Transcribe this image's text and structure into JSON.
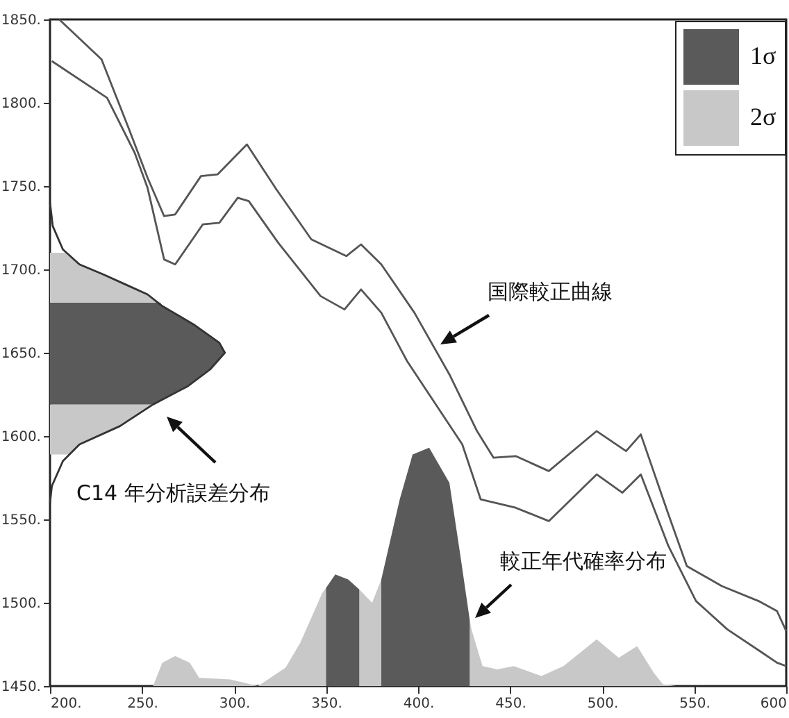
{
  "chart_data": {
    "type": "line",
    "xlim": [
      200,
      600
    ],
    "ylim": [
      1450,
      1850
    ],
    "xticks": [
      {
        "value": 200,
        "label": "200."
      },
      {
        "value": 250,
        "label": "250."
      },
      {
        "value": 300,
        "label": "300."
      },
      {
        "value": 350,
        "label": "350."
      },
      {
        "value": 400,
        "label": "400."
      },
      {
        "value": 450,
        "label": "450."
      },
      {
        "value": 500,
        "label": "500."
      },
      {
        "value": 550,
        "label": "550."
      },
      {
        "value": 600,
        "label": "600"
      }
    ],
    "yticks": [
      {
        "value": 1450,
        "label": "1450."
      },
      {
        "value": 1500,
        "label": "1500."
      },
      {
        "value": 1550,
        "label": "1550."
      },
      {
        "value": 1600,
        "label": "1600."
      },
      {
        "value": 1650,
        "label": "1650."
      },
      {
        "value": 1700,
        "label": "1700."
      },
      {
        "value": 1750,
        "label": "1750."
      },
      {
        "value": 1800,
        "label": "1800."
      },
      {
        "value": 1850,
        "label": "1850."
      }
    ],
    "grid": false,
    "legend": "top right",
    "series": [
      {
        "color": "#555555",
        "x": [
          205,
          228,
          243,
          253,
          262,
          268,
          282,
          291,
          307,
          323,
          342,
          361,
          369,
          380,
          398,
          417,
          432,
          441,
          453,
          471,
          497,
          513,
          521,
          536,
          546,
          565,
          585,
          595,
          600
        ],
        "values": [
          1850,
          1826,
          1784,
          1755,
          1732,
          1733,
          1756,
          1757,
          1775,
          1748,
          1718,
          1708,
          1715,
          1703,
          1674,
          1637,
          1603,
          1587,
          1588,
          1579,
          1603,
          1591,
          1601,
          1553,
          1522,
          1510,
          1501,
          1495,
          1483
        ]
      },
      {
        "color": "#555555",
        "x": [
          201,
          231,
          246,
          253,
          262,
          268,
          283,
          292,
          302,
          308,
          324,
          347,
          360,
          369,
          380,
          394,
          424,
          434,
          453,
          471,
          497,
          511,
          521,
          536,
          551,
          568,
          587,
          595,
          600
        ],
        "values": [
          1825,
          1803,
          1770,
          1749,
          1706,
          1703,
          1727,
          1728,
          1743,
          1741,
          1716,
          1684,
          1676,
          1688,
          1674,
          1645,
          1595,
          1562,
          1557,
          1549,
          1577,
          1566,
          1577,
          1534,
          1501,
          1484,
          1470,
          1464,
          1462
        ]
      },
      {
        "type": "area",
        "color": "#c8c8c8",
        "x": [
          200,
          211,
          216,
          238,
          256,
          200
        ],
        "values": [
          1589,
          1589,
          1595,
          1606,
          1619,
          1619
        ]
      },
      {
        "type": "area",
        "color": "#c8c8c8",
        "x": [
          200,
          260,
          253,
          241,
          229,
          216,
          208,
          200
        ],
        "values": [
          1680,
          1680,
          1685,
          1691,
          1697,
          1703,
          1710,
          1710
        ]
      },
      {
        "type": "area",
        "color": "#5a5a5a",
        "x": [
          200,
          256,
          275,
          287,
          295,
          292,
          278,
          261,
          260,
          200
        ],
        "values": [
          1619,
          1619,
          1630,
          1640,
          1650,
          1656,
          1667,
          1678,
          1680,
          1680
        ]
      },
      {
        "color": "#333333",
        "x": [
          200,
          201,
          207,
          216,
          238,
          256,
          275,
          287,
          295,
          292,
          278,
          261,
          253,
          241,
          229,
          216,
          207,
          201.5,
          200
        ],
        "values": [
          1560,
          1570,
          1585,
          1595,
          1606,
          1619,
          1630,
          1640,
          1650,
          1656,
          1667,
          1678,
          1685,
          1691,
          1697,
          1703,
          1712,
          1726,
          1740
        ]
      },
      {
        "type": "area",
        "name": "2σ",
        "color": "#c8c8c8",
        "x": [
          200,
          256,
          261,
          268,
          276,
          281,
          298,
          313,
          328,
          336,
          348,
          350,
          368,
          375,
          380,
          428,
          429,
          435,
          443,
          452,
          467,
          479,
          497,
          509,
          519,
          528,
          533,
          540,
          600
        ],
        "values": [
          1450,
          1450,
          1464,
          1468,
          1464,
          1455,
          1454,
          1450,
          1461,
          1476,
          1506,
          1509,
          1508,
          1500,
          1514,
          1490,
          1484,
          1462,
          1460,
          1462,
          1456,
          1462,
          1478,
          1467,
          1474,
          1458,
          1451,
          1450,
          1450
        ]
      },
      {
        "type": "area",
        "name": "1σ",
        "color": "#5a5a5a",
        "x": [
          350,
          355,
          362,
          368,
          375,
          380,
          390,
          397,
          406,
          417,
          423,
          428
        ],
        "values": [
          1509,
          1517,
          1514,
          1508,
          null,
          1514,
          1562,
          1589,
          1593,
          1572,
          1528,
          1490
        ]
      }
    ],
    "annotations": [
      "国際較正曲線",
      "C14 年分析誤差分布",
      "較正年代確率分布"
    ]
  }
}
